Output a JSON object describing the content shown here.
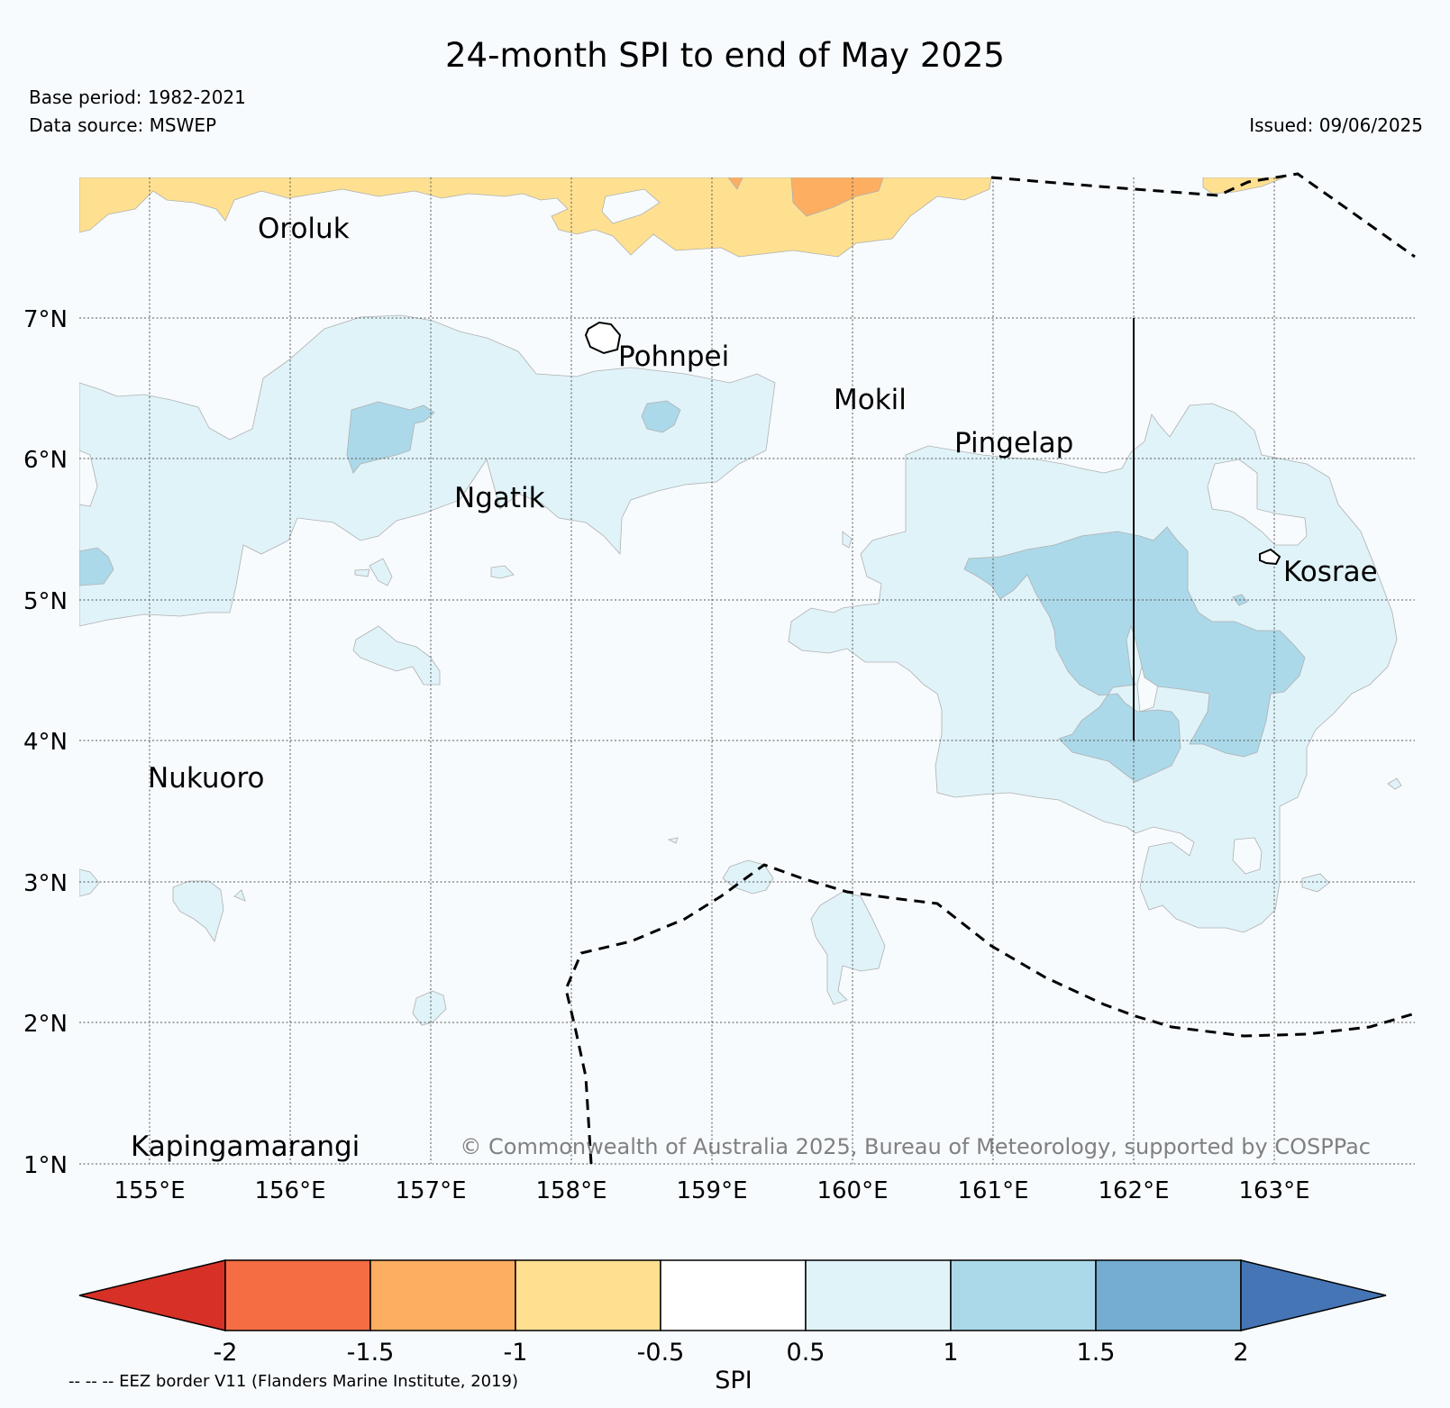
{
  "header": {
    "title": "24-month SPI to end of May 2025",
    "base_period": "Base period: 1982-2021",
    "data_source": "Data source: MSWEP",
    "issued": "Issued: 09/06/2025"
  },
  "map": {
    "lon_range": [
      154.5,
      164.0
    ],
    "lat_range": [
      1.0,
      8.0
    ],
    "lon_ticks": [
      155,
      156,
      157,
      158,
      159,
      160,
      161,
      162,
      163
    ],
    "lon_tick_labels": [
      "155°E",
      "156°E",
      "157°E",
      "158°E",
      "159°E",
      "160°E",
      "161°E",
      "162°E",
      "163°E"
    ],
    "lat_ticks": [
      1,
      2,
      3,
      4,
      5,
      6,
      7
    ],
    "lat_tick_labels": [
      "1°N",
      "2°N",
      "3°N",
      "4°N",
      "5°N",
      "6°N",
      "7°N"
    ],
    "places": [
      {
        "name": "Oroluk",
        "lon": 155.8,
        "lat": 7.6
      },
      {
        "name": "Pohnpei",
        "lon": 158.35,
        "lat": 6.7
      },
      {
        "name": "Mokil",
        "lon": 159.85,
        "lat": 6.38
      },
      {
        "name": "Pingelap",
        "lon": 160.72,
        "lat": 6.08
      },
      {
        "name": "Ngatik",
        "lon": 157.18,
        "lat": 5.7
      },
      {
        "name": "Kosrae",
        "lon": 163.05,
        "lat": 5.15
      },
      {
        "name": "Nukuoro",
        "lon": 154.98,
        "lat": 3.7
      },
      {
        "name": "Kapingamarangi",
        "lon": 154.87,
        "lat": 1.08
      }
    ],
    "copyright": "© Commonwealth of Australia 2025, Bureau of Meteorology, supported by COSPPac"
  },
  "colorbar": {
    "label": "SPI",
    "ticks": [
      "-2",
      "-1.5",
      "-1",
      "-0.5",
      "0.5",
      "1",
      "1.5",
      "2"
    ],
    "colors": [
      "#d73027",
      "#f46d43",
      "#fdae61",
      "#fee090",
      "#ffffff",
      "#e0f3f8",
      "#abd9e9",
      "#74add1",
      "#4575b4"
    ]
  },
  "footer": {
    "eez_note": "-- -- -- EEZ border V11 (Flanders Marine Institute, 2019)"
  }
}
